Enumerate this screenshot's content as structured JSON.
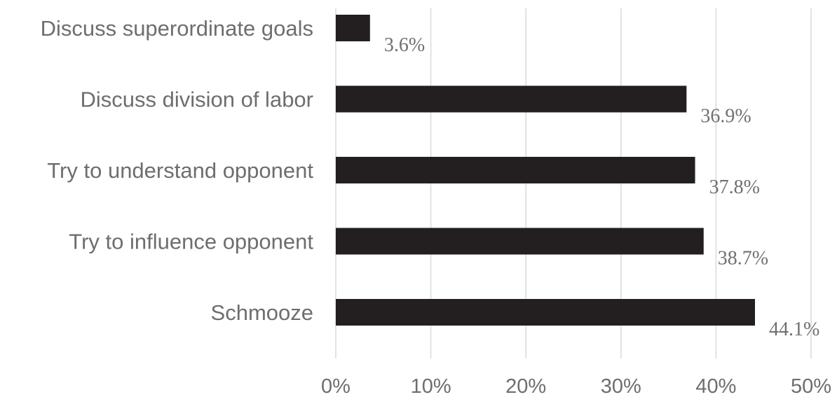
{
  "chart_data": {
    "type": "bar",
    "orientation": "horizontal",
    "categories": [
      "Discuss superordinate goals",
      "Discuss division of labor",
      "Try to understand opponent",
      "Try to influence opponent",
      "Schmooze"
    ],
    "values": [
      3.6,
      36.9,
      37.8,
      38.7,
      44.1
    ],
    "value_labels": [
      "3.6%",
      "36.9%",
      "37.8%",
      "38.7%",
      "44.1%"
    ],
    "xlim": [
      0,
      50
    ],
    "x_ticks": [
      0,
      10,
      20,
      30,
      40,
      50
    ],
    "x_tick_labels": [
      "0%",
      "10%",
      "20%",
      "30%",
      "40%",
      "50%"
    ],
    "title": "",
    "xlabel": "",
    "ylabel": "",
    "grid": "vertical",
    "legend": "none",
    "bar_color": "#231f20"
  }
}
